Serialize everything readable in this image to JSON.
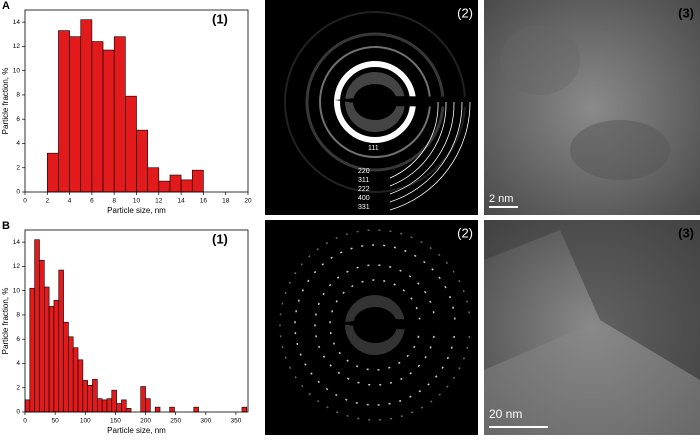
{
  "chart_data": [
    {
      "type": "histogram",
      "panel": "A",
      "label": "(1)",
      "xlabel": "Particle size, nm",
      "ylabel": "Particle fraction, %",
      "color": "#e31a1c",
      "bins": [
        2,
        3,
        4,
        5,
        6,
        7,
        8,
        9,
        10,
        11,
        12,
        13,
        14,
        15,
        16
      ],
      "values": [
        3.2,
        13.3,
        12.8,
        14.2,
        12.4,
        11.7,
        12.8,
        7.9,
        5.1,
        2.0,
        0.9,
        1.4,
        1.0,
        1.8
      ],
      "xlim": [
        0,
        20
      ],
      "xticks": [
        0,
        2,
        4,
        6,
        8,
        10,
        12,
        14,
        16,
        18,
        20
      ],
      "ylim": [
        0,
        15
      ],
      "yticks": [
        0,
        2,
        4,
        6,
        8,
        10,
        12,
        14
      ]
    },
    {
      "type": "histogram",
      "panel": "B",
      "label": "(1)",
      "xlabel": "Particle size, nm",
      "ylabel": "Particle fraction, %",
      "color": "#e31a1c",
      "bins": [
        0,
        8,
        16,
        24,
        32,
        40,
        48,
        56,
        64,
        72,
        80,
        88,
        96,
        104,
        112,
        120,
        128,
        136,
        144,
        152,
        160,
        168,
        176,
        184,
        192,
        200,
        208,
        216,
        224,
        232,
        240,
        248,
        256,
        264,
        272,
        280,
        288,
        296,
        304,
        312,
        320,
        328,
        336,
        344,
        352,
        360,
        368
      ],
      "values": [
        1.0,
        10.2,
        14.2,
        12.5,
        10.3,
        8.7,
        9.2,
        11.7,
        7.4,
        6.2,
        5.3,
        4.3,
        2.6,
        2.2,
        2.7,
        1.1,
        1.0,
        1.1,
        1.8,
        0.7,
        1.0,
        0.3,
        0,
        0,
        2.1,
        1.1,
        0,
        0.4,
        0,
        0,
        0.4,
        0,
        0,
        0,
        0,
        0.4,
        0,
        0,
        0,
        0,
        0,
        0,
        0,
        0,
        0,
        0.4
      ],
      "xlim": [
        0,
        370
      ],
      "xticks": [
        0,
        50,
        100,
        150,
        200,
        250,
        300,
        350
      ],
      "ylim": [
        0,
        15
      ],
      "yticks": [
        0,
        2,
        4,
        6,
        8,
        10,
        12,
        14
      ]
    }
  ],
  "images": {
    "a2": "(2)",
    "a3": "(3)",
    "b2": "(2)",
    "b3": "(3)",
    "rings": [
      "111",
      "220",
      "311",
      "222",
      "400",
      "331"
    ],
    "scale_a": "2 nm",
    "scale_b": "20 nm"
  }
}
